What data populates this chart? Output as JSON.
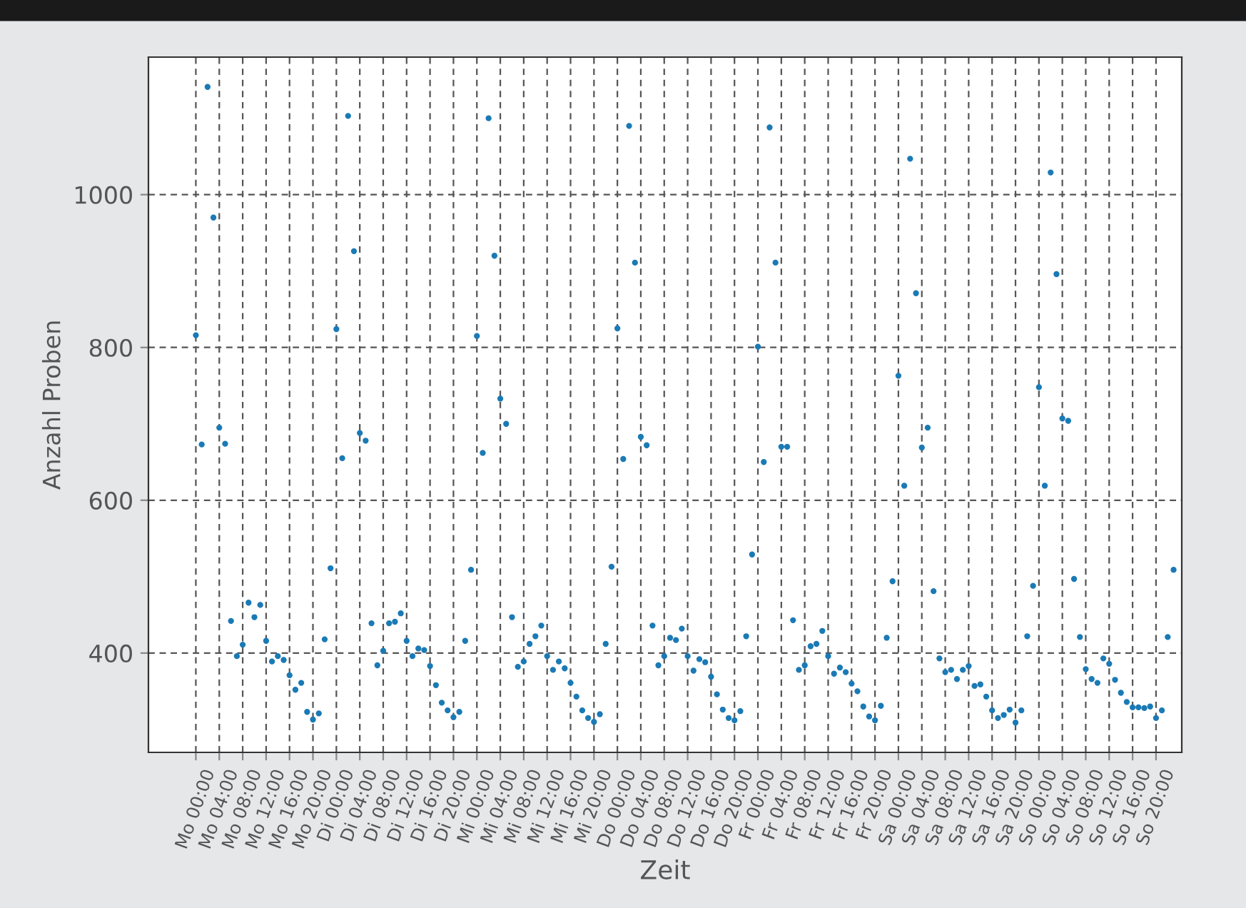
{
  "chart_data": {
    "type": "scatter",
    "xlabel": "Zeit",
    "ylabel": "Anzahl Proben",
    "categories": [
      "Mo 00:00",
      null,
      null,
      null,
      "Mo 04:00",
      null,
      null,
      null,
      "Mo 08:00",
      null,
      null,
      null,
      "Mo 12:00",
      null,
      null,
      null,
      "Mo 16:00",
      null,
      null,
      null,
      "Mo 20:00",
      null,
      null,
      null,
      "Di 00:00",
      null,
      null,
      null,
      "Di 04:00",
      null,
      null,
      null,
      "Di 08:00",
      null,
      null,
      null,
      "Di 12:00",
      null,
      null,
      null,
      "Di 16:00",
      null,
      null,
      null,
      "Di 20:00",
      null,
      null,
      null,
      "Mi 00:00",
      null,
      null,
      null,
      "Mi 04:00",
      null,
      null,
      null,
      "Mi 08:00",
      null,
      null,
      null,
      "Mi 12:00",
      null,
      null,
      null,
      "Mi 16:00",
      null,
      null,
      null,
      "Mi 20:00",
      null,
      null,
      null,
      "Do 00:00",
      null,
      null,
      null,
      "Do 04:00",
      null,
      null,
      null,
      "Do 08:00",
      null,
      null,
      null,
      "Do 12:00",
      null,
      null,
      null,
      "Do 16:00",
      null,
      null,
      null,
      "Do 20:00",
      null,
      null,
      null,
      "Fr 00:00",
      null,
      null,
      null,
      "Fr 04:00",
      null,
      null,
      null,
      "Fr 08:00",
      null,
      null,
      null,
      "Fr 12:00",
      null,
      null,
      null,
      "Fr 16:00",
      null,
      null,
      null,
      "Fr 20:00",
      null,
      null,
      null,
      "Sa 00:00",
      null,
      null,
      null,
      "Sa 04:00",
      null,
      null,
      null,
      "Sa 08:00",
      null,
      null,
      null,
      "Sa 12:00",
      null,
      null,
      null,
      "Sa 16:00",
      null,
      null,
      null,
      "Sa 20:00",
      null,
      null,
      null,
      "So 00:00",
      null,
      null,
      null,
      "So 04:00",
      null,
      null,
      null,
      "So 08:00",
      null,
      null,
      null,
      "So 12:00",
      null,
      null,
      null,
      "So 16:00",
      null,
      null,
      null,
      "So 20:00",
      null,
      null,
      null
    ],
    "series": [
      {
        "color": "#1a7ab5",
        "values": [
          816,
          673,
          1141,
          970,
          695,
          674,
          442,
          396,
          411,
          466,
          447,
          463,
          416,
          389,
          396,
          391,
          371,
          352,
          361,
          323,
          313,
          321,
          418,
          511,
          824,
          655,
          1103,
          926,
          688,
          678,
          439,
          384,
          403,
          439,
          441,
          452,
          416,
          396,
          406,
          404,
          383,
          358,
          335,
          325,
          316,
          323,
          416,
          509,
          815,
          662,
          1100,
          920,
          733,
          700,
          447,
          382,
          389,
          412,
          422,
          436,
          396,
          378,
          389,
          380,
          361,
          343,
          325,
          315,
          310,
          320,
          412,
          513,
          825,
          654,
          1090,
          911,
          683,
          672,
          436,
          384,
          396,
          420,
          417,
          432,
          396,
          377,
          392,
          388,
          369,
          346,
          326,
          315,
          312,
          324,
          422,
          529,
          801,
          650,
          1088,
          911,
          670,
          670,
          443,
          378,
          384,
          409,
          412,
          429,
          396,
          373,
          381,
          375,
          360,
          350,
          330,
          317,
          312,
          331,
          420,
          494,
          763,
          619,
          1047,
          871,
          669,
          695,
          481,
          393,
          375,
          378,
          366,
          378,
          383,
          357,
          359,
          343,
          325,
          315,
          319,
          326,
          309,
          325,
          422,
          488,
          748,
          619,
          1029,
          896,
          707,
          704,
          497,
          421,
          379,
          366,
          361,
          393,
          386,
          365,
          348,
          336,
          329,
          329,
          328,
          330,
          315,
          325,
          421,
          509
        ]
      }
    ],
    "ylim": [
      270,
      1180
    ],
    "yticks": [
      400,
      600,
      800,
      1000
    ],
    "grid": true,
    "marker": "circle"
  }
}
